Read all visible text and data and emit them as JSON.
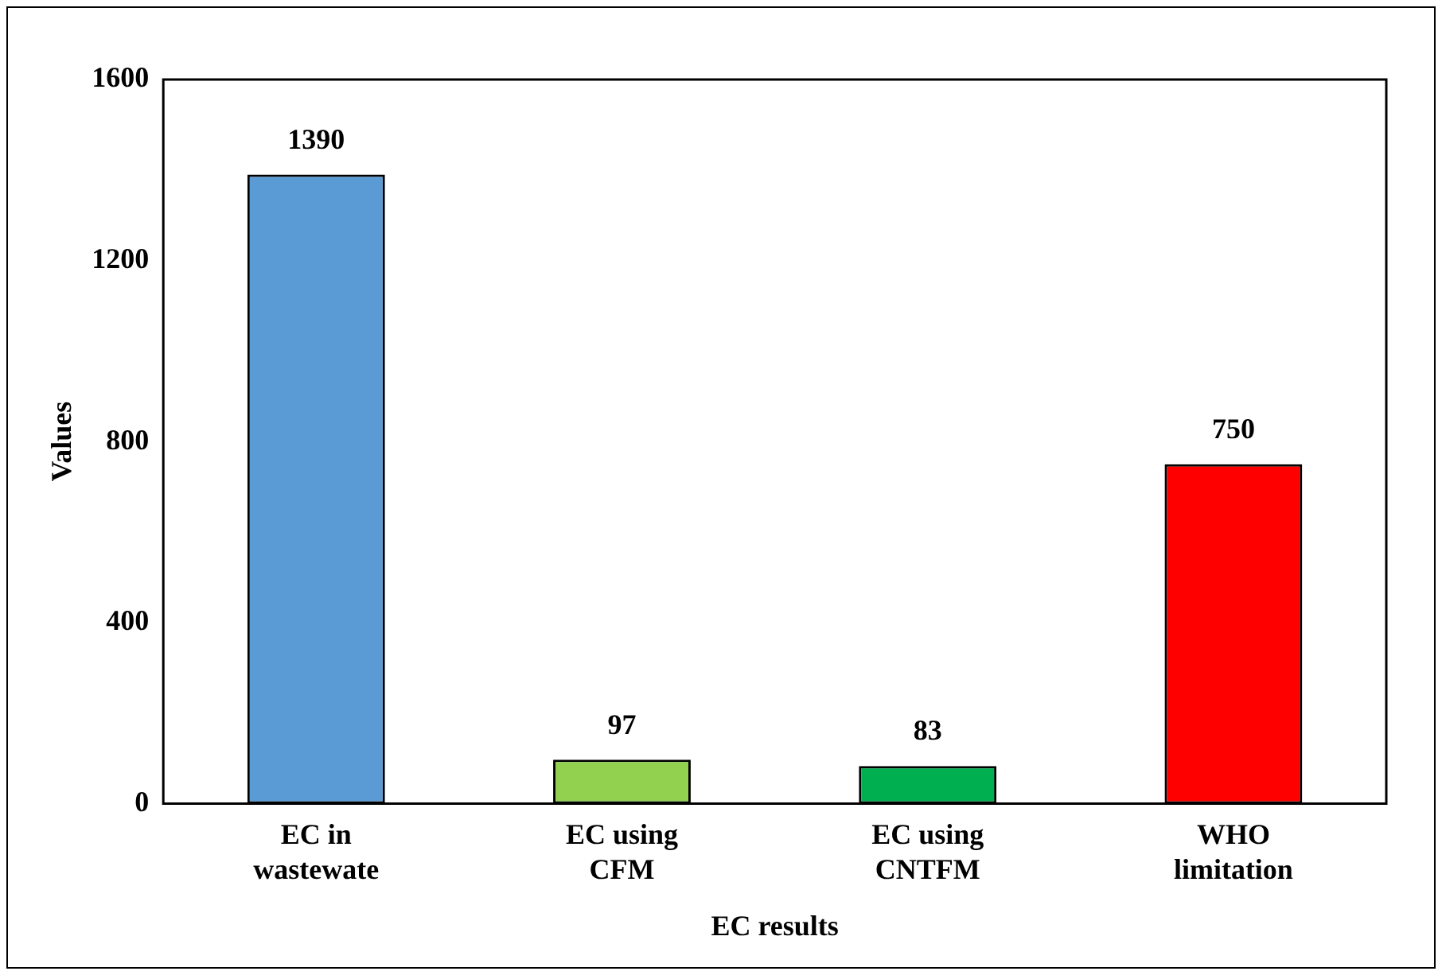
{
  "chart_data": {
    "type": "bar",
    "xlabel": "EC results",
    "ylabel": "Values",
    "categories": [
      "EC in\nwastewate",
      "EC using\nCFM",
      "EC using\nCNTFM",
      "WHO\nlimitation"
    ],
    "values": [
      1390,
      97,
      83,
      750
    ],
    "colors": [
      "#5b9bd5",
      "#92d050",
      "#00b050",
      "#ff0000"
    ],
    "ylim": [
      0,
      1600
    ],
    "yticks": [
      0,
      400,
      800,
      1200,
      1600
    ],
    "grid": false,
    "data_labels": true
  }
}
